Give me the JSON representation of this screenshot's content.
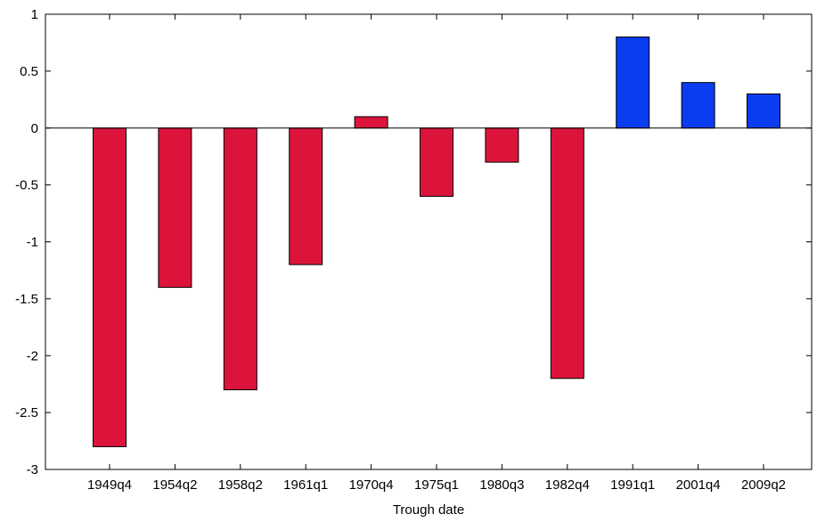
{
  "chart_data": {
    "type": "bar",
    "categories": [
      "1949q4",
      "1954q2",
      "1958q2",
      "1961q1",
      "1970q4",
      "1975q1",
      "1980q3",
      "1982q4",
      "1991q1",
      "2001q4",
      "2009q2"
    ],
    "values": [
      -2.8,
      -1.4,
      -2.3,
      -1.2,
      0.1,
      -0.6,
      -0.3,
      -2.2,
      0.8,
      0.4,
      0.3
    ],
    "bar_colors": [
      "#dc143c",
      "#dc143c",
      "#dc143c",
      "#dc143c",
      "#dc143c",
      "#dc143c",
      "#dc143c",
      "#dc143c",
      "#0a3cf0",
      "#0a3cf0",
      "#0a3cf0"
    ],
    "title": "",
    "xlabel": "Trough date",
    "ylabel": "",
    "ylim": [
      -3,
      1
    ],
    "yticks": [
      1,
      0.5,
      0,
      -0.5,
      -1,
      -1.5,
      -2,
      -2.5,
      -3
    ],
    "ytick_labels": [
      "1",
      "0.5",
      "0",
      "-0.5",
      "-1",
      "-1.5",
      "-2",
      "-2.5",
      "-3"
    ],
    "grid": false,
    "legend": "none"
  }
}
